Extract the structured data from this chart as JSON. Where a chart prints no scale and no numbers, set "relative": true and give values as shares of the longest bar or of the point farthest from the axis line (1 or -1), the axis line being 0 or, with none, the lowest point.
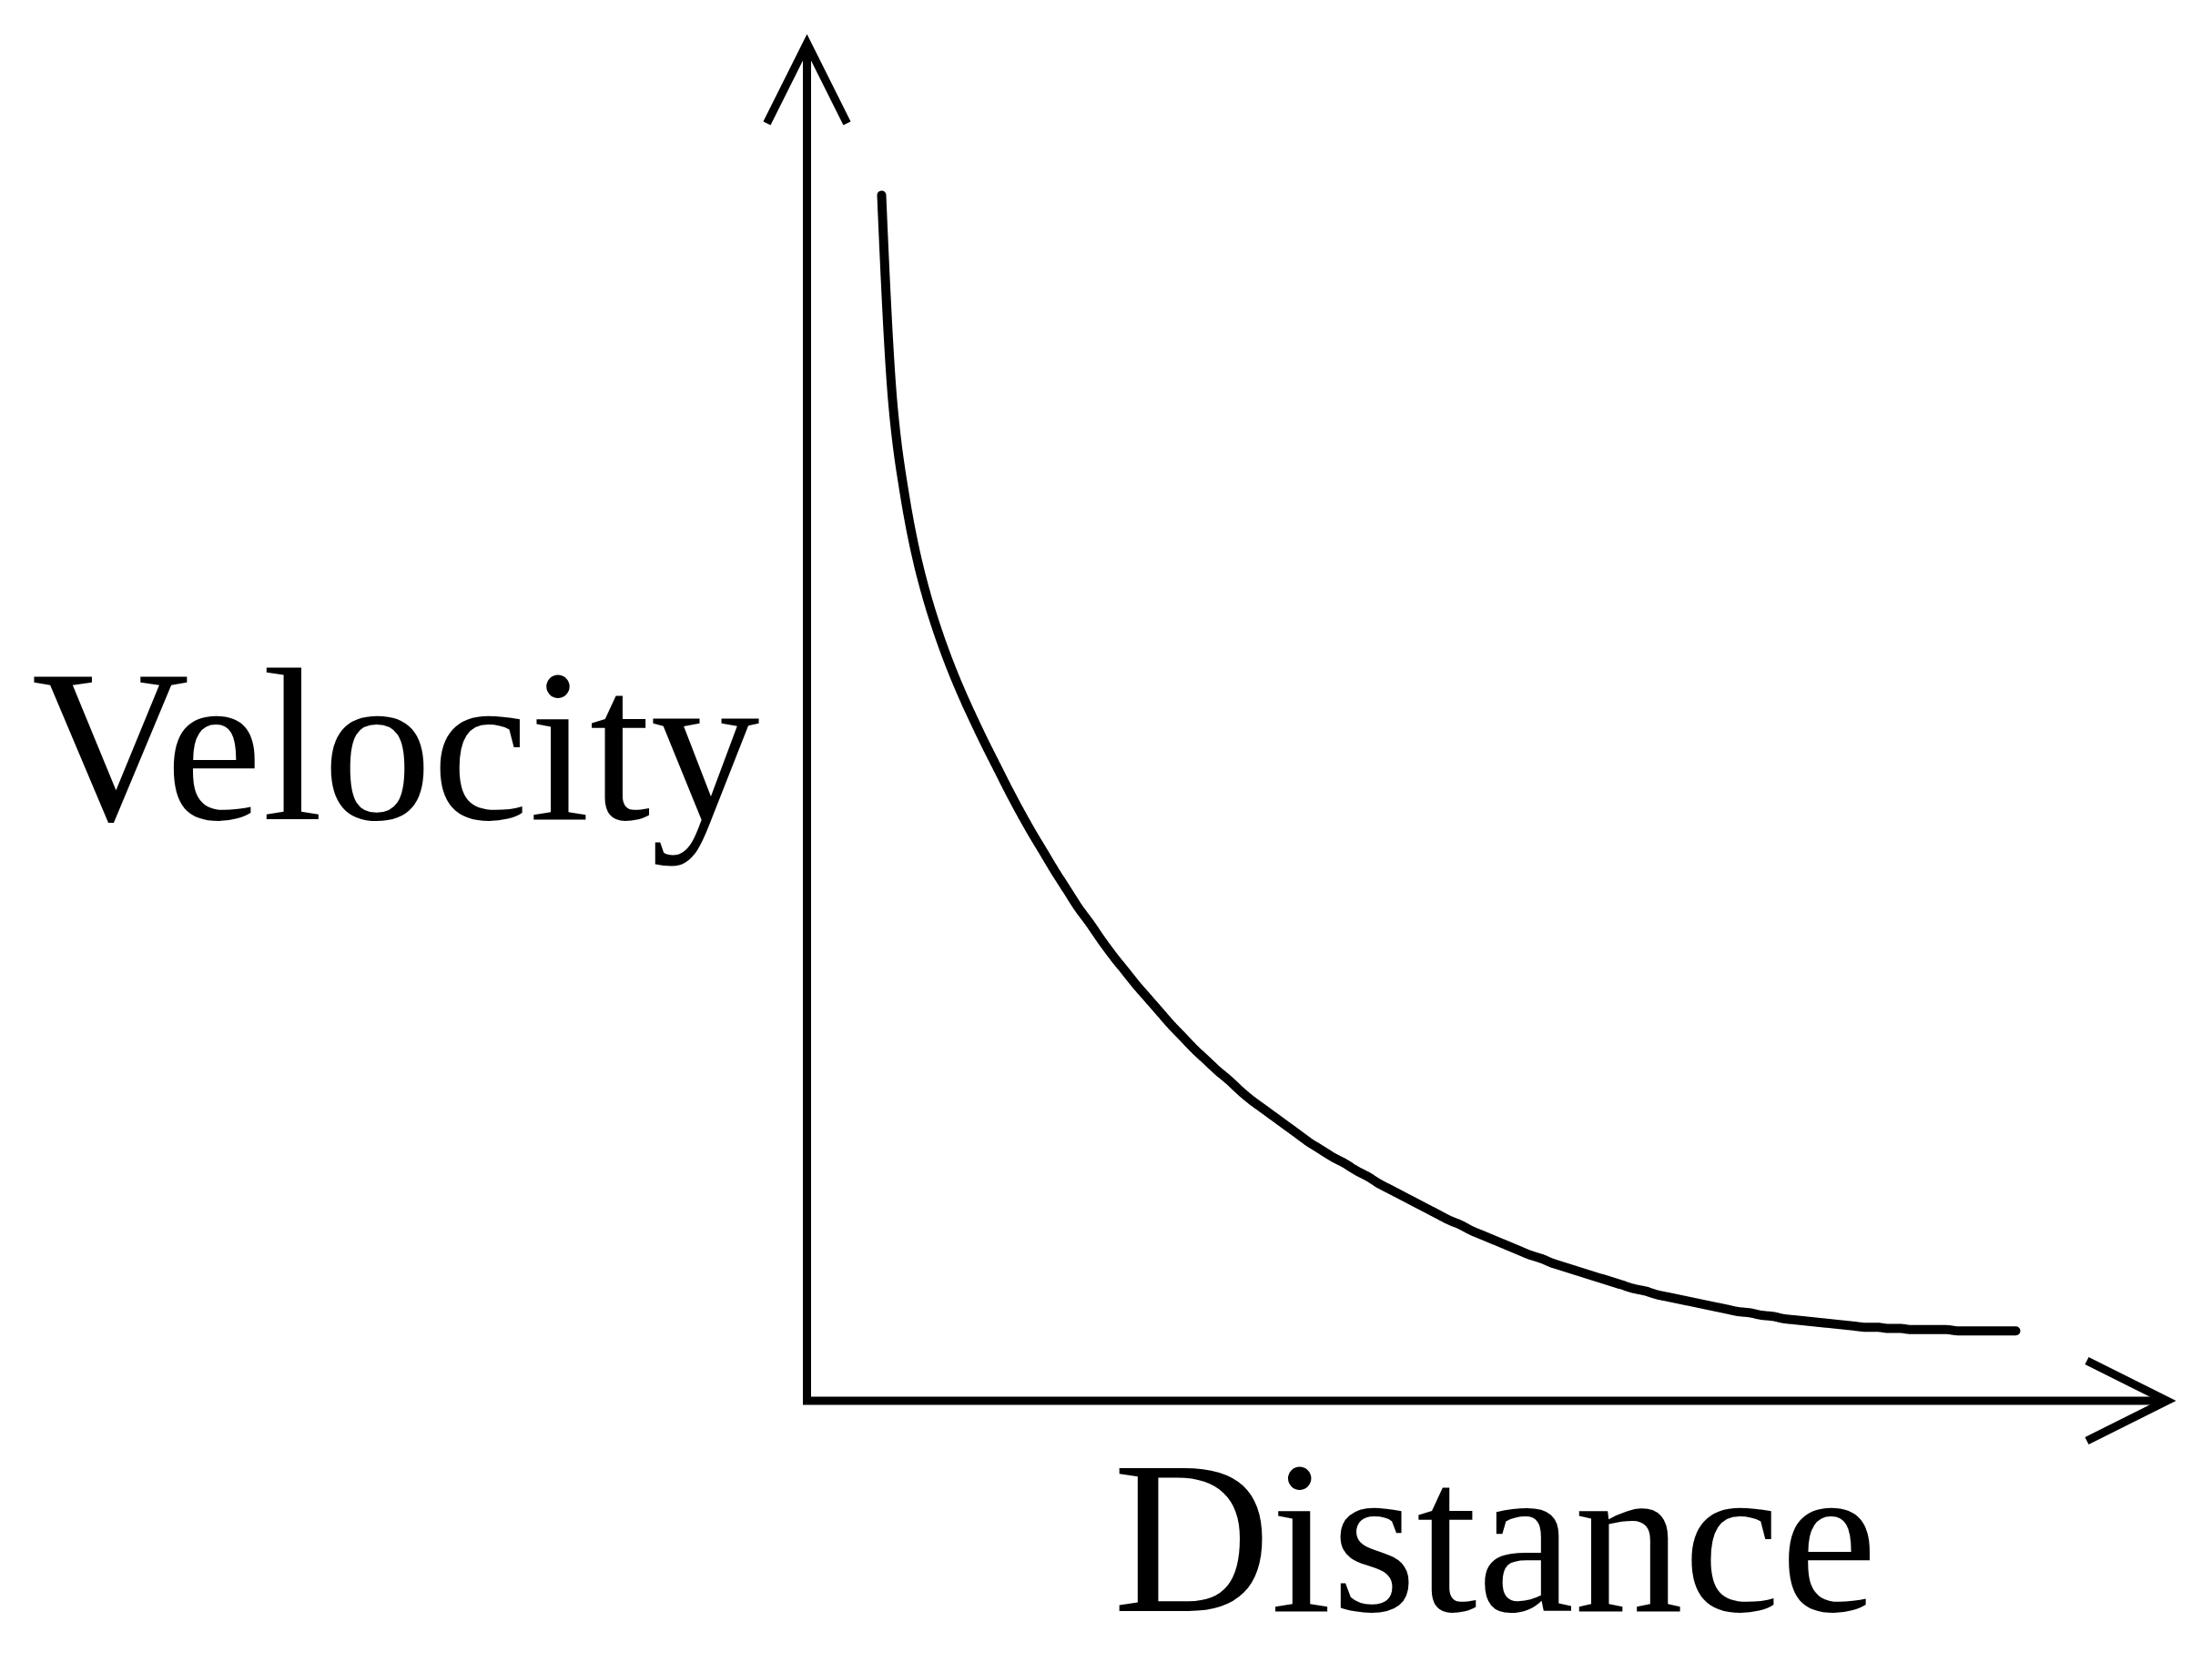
{
  "chart_data": {
    "type": "line",
    "relative": true,
    "xlabel": "Distance",
    "ylabel": "Velocity",
    "categories": [
      null,
      null,
      null,
      null,
      null,
      null,
      null,
      null,
      null,
      null,
      null,
      null,
      null,
      null,
      null,
      null,
      null,
      null,
      null,
      null,
      null,
      null,
      null,
      null,
      null,
      null,
      null,
      null,
      null,
      null,
      null,
      null,
      null,
      null,
      null,
      null,
      null,
      null,
      null,
      null,
      null,
      null,
      null,
      null,
      null,
      null,
      null,
      null,
      null,
      null,
      null,
      null,
      null,
      null,
      null,
      null,
      null,
      null,
      null,
      null,
      null,
      null,
      null,
      null,
      null,
      null,
      null,
      null,
      null,
      null,
      null,
      null,
      null,
      null,
      null,
      null,
      null,
      null,
      null,
      null,
      null,
      null,
      null,
      null,
      null,
      null,
      null,
      null,
      null,
      null,
      null,
      null,
      null,
      null,
      null,
      null,
      null,
      null,
      null
    ],
    "series": [
      {
        "color": "#000000",
        "values": [
          1,
          0.824,
          0.751,
          0.701,
          0.664,
          0.634,
          0.608,
          0.585,
          0.564,
          0.544,
          0.525,
          0.506,
          0.488,
          0.471,
          0.455,
          0.439,
          0.424,
          0.409,
          0.396,
          0.382,
          0.369,
          0.357,
          0.345,
          0.334,
          0.323,
          0.312,
          0.302,
          0.292,
          0.283,
          0.274,
          0.266,
          0.257,
          0.249,
          0.242,
          0.235,
          0.228,
          0.221,
          0.214,
          0.208,
          0.202,
          0.197,
          0.191,
          0.186,
          0.18,
          0.175,
          0.17,
          0.165,
          0.16,
          0.155,
          0.15,
          0.146,
          0.141,
          0.137,
          0.133,
          0.129,
          0.125,
          0.121,
          0.118,
          0.114,
          0.111,
          0.108,
          0.105,
          0.102,
          0.099,
          0.096,
          0.093,
          0.091,
          0.088,
          0.086,
          0.084,
          0.082,
          0.08,
          0.078,
          0.076,
          0.074,
          0.073,
          0.071,
          0.07,
          0.068,
          0.067,
          0.066,
          0.065,
          0.064,
          0.063,
          0.062,
          0.061,
          0.061,
          0.06,
          0.06,
          0.059,
          0.059,
          0.059,
          0.059,
          0.058,
          0.058,
          0.058,
          0.058,
          0.058,
          0.058
        ]
      }
    ]
  }
}
